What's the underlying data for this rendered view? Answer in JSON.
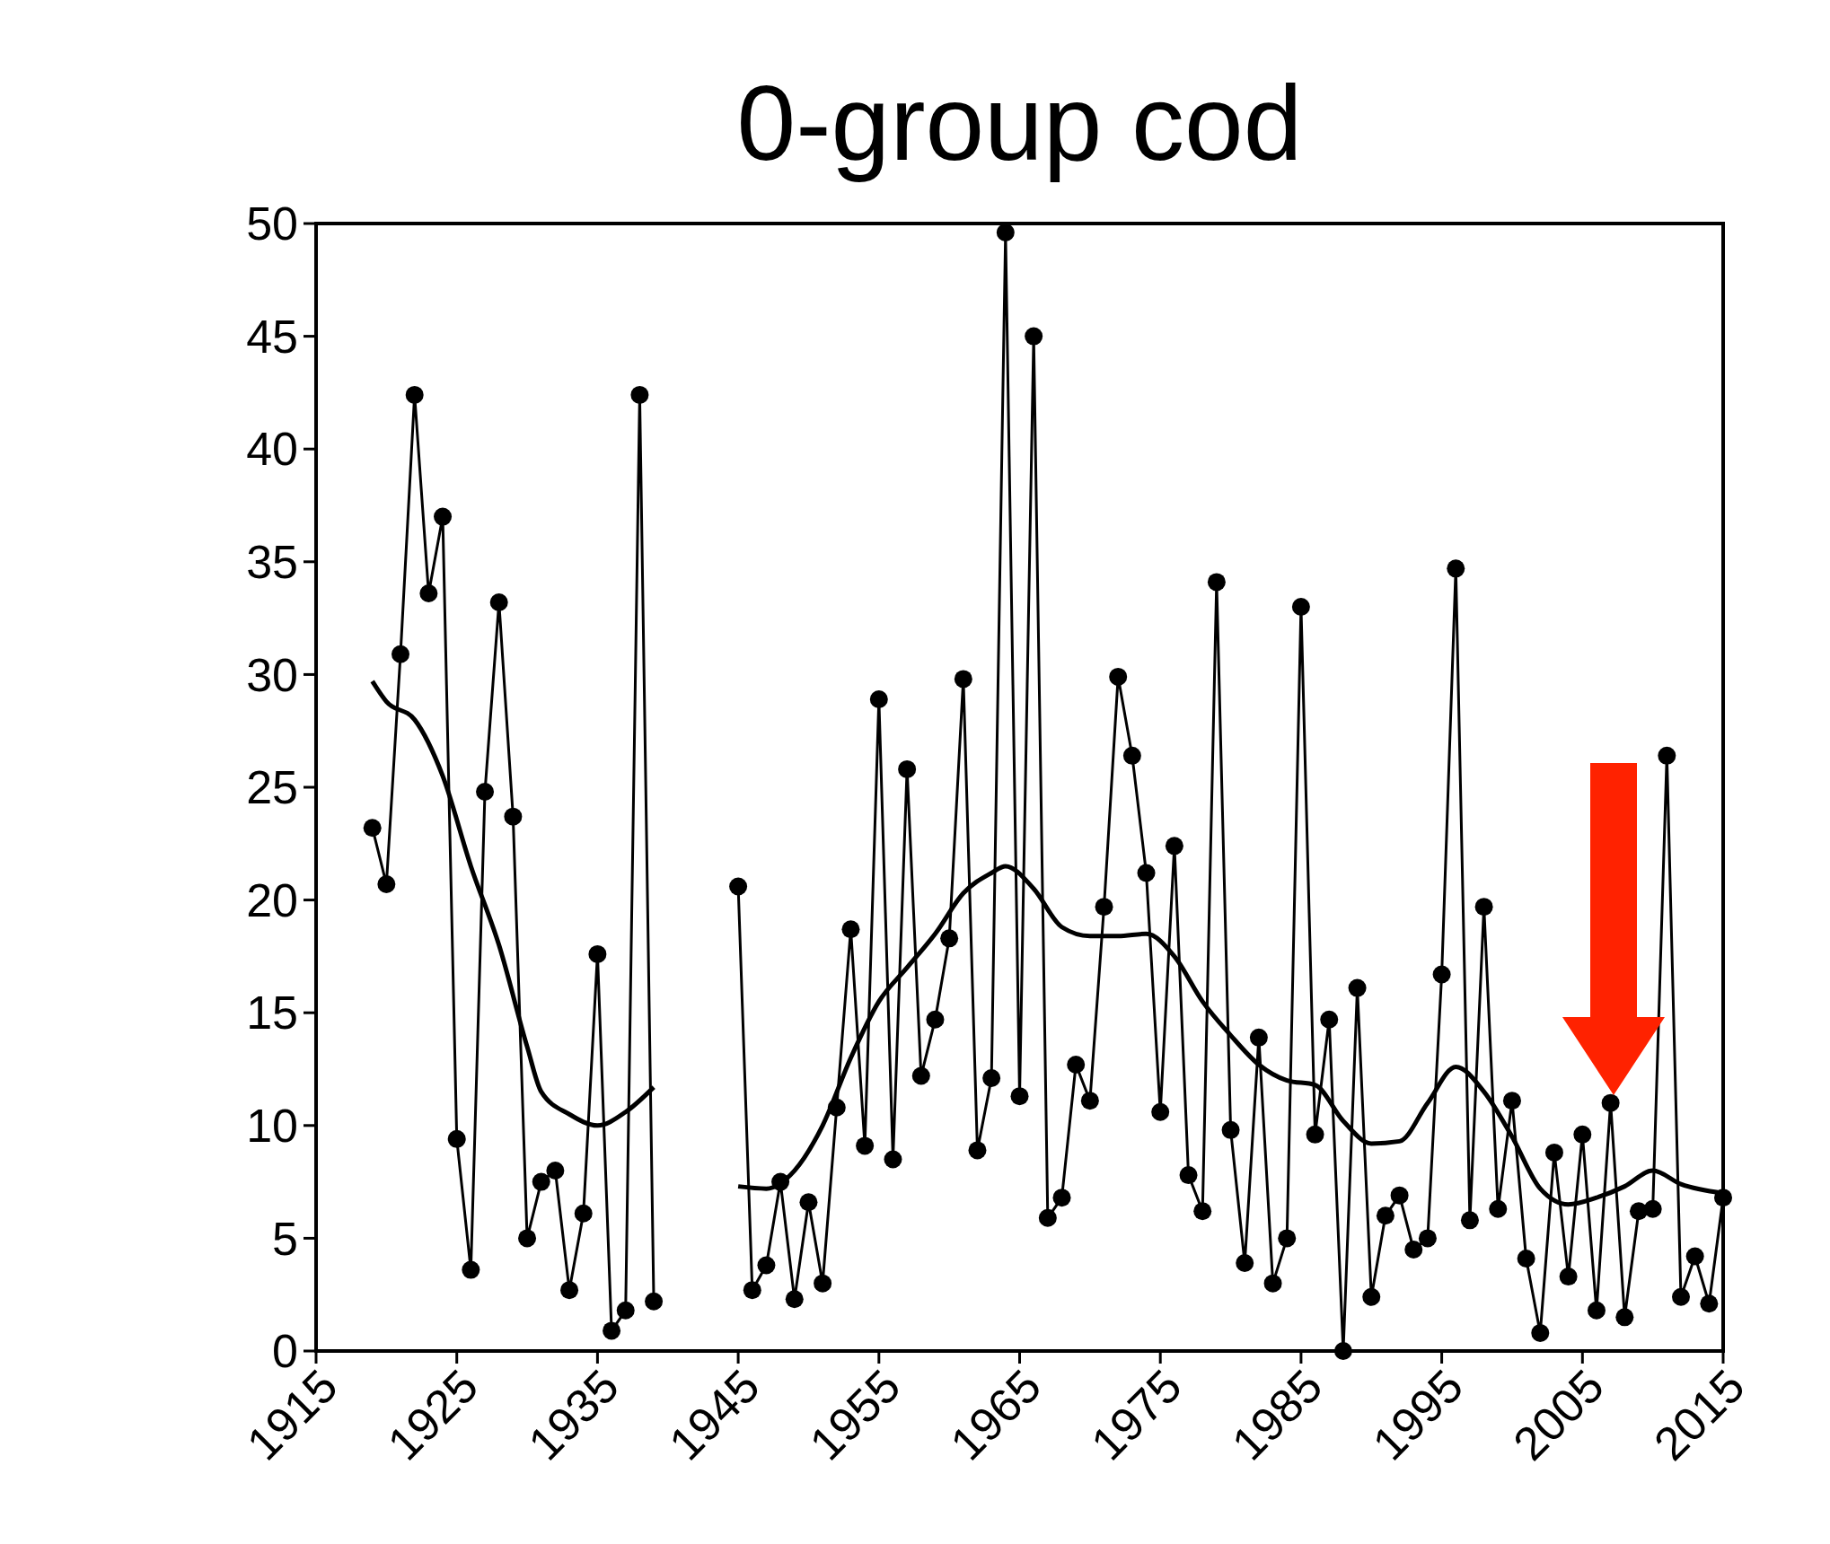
{
  "chart_data": {
    "type": "line",
    "title": "0-group cod",
    "x": [
      1919,
      1920,
      1921,
      1922,
      1923,
      1924,
      1925,
      1926,
      1927,
      1928,
      1929,
      1930,
      1931,
      1932,
      1933,
      1934,
      1935,
      1936,
      1937,
      1938,
      1939,
      1940,
      1945,
      1946,
      1947,
      1948,
      1949,
      1950,
      1951,
      1952,
      1953,
      1954,
      1955,
      1956,
      1957,
      1958,
      1959,
      1960,
      1961,
      1962,
      1963,
      1964,
      1965,
      1966,
      1967,
      1968,
      1969,
      1970,
      1971,
      1972,
      1973,
      1974,
      1975,
      1976,
      1977,
      1978,
      1979,
      1980,
      1981,
      1982,
      1983,
      1984,
      1985,
      1986,
      1987,
      1988,
      1989,
      1990,
      1991,
      1992,
      1993,
      1994,
      1995,
      1996,
      1997,
      1998,
      1999,
      2000,
      2001,
      2002,
      2003,
      2004,
      2005,
      2006,
      2007,
      2008,
      2009,
      2010,
      2011,
      2012,
      2013,
      2014,
      2015
    ],
    "series": [
      {
        "color": "#000000",
        "marker": "circle",
        "values": [
          23.2,
          20.7,
          30.9,
          42.4,
          33.6,
          37.0,
          9.4,
          3.6,
          24.8,
          33.2,
          23.7,
          5.0,
          7.5,
          8.0,
          2.7,
          6.1,
          17.6,
          0.9,
          1.8,
          42.4,
          2.2,
          null,
          20.6,
          2.7,
          3.8,
          7.5,
          2.3,
          6.6,
          3.0,
          10.8,
          18.7,
          9.1,
          28.9,
          8.5,
          25.8,
          12.2,
          14.7,
          18.3,
          29.8,
          8.9,
          12.1,
          49.6,
          11.3,
          45.0,
          5.9,
          6.8,
          12.7,
          11.1,
          19.7,
          29.9,
          26.4,
          21.2,
          10.6,
          22.4,
          7.8,
          6.2,
          34.1,
          9.8,
          3.9,
          13.9,
          3.0,
          5.0,
          33.0,
          9.6,
          14.7,
          0,
          16.1,
          2.4,
          6.0,
          6.9,
          4.5,
          5.0,
          16.7,
          34.7,
          5.8,
          19.7,
          6.3,
          11.1,
          4.1,
          0.8,
          8.8,
          3.3,
          9.6,
          1.8,
          11,
          1.5,
          6.2,
          6.3,
          26.4,
          2.4,
          4.2,
          2.1,
          6.8
        ]
      },
      {
        "color": "#000000",
        "marker": "none",
        "x": [
          1919,
          1920,
          1922,
          1924,
          1926,
          1928,
          1930,
          1931,
          1933,
          1935,
          1937,
          1939,
          1942,
          1945,
          1947,
          1949,
          1951,
          1953,
          1955,
          1957,
          1959,
          1961,
          1963,
          1964,
          1966,
          1968,
          1970,
          1972,
          1974,
          1976,
          1978,
          1980,
          1982,
          1984,
          1986,
          1988,
          1990,
          1992,
          1994,
          1996,
          1998,
          2000,
          2002,
          2004,
          2006,
          2008,
          2010,
          2012,
          2015
        ],
        "values": [
          29.7,
          28.8,
          28.0,
          25.5,
          21.5,
          18.0,
          13.5,
          11.5,
          10.5,
          10.0,
          10.6,
          11.7,
          null,
          7.3,
          7.2,
          8.0,
          10.0,
          13.0,
          15.5,
          17.0,
          18.5,
          20.3,
          21.2,
          21.5,
          20.5,
          18.8,
          18.4,
          18.4,
          18.5,
          17.5,
          15.5,
          14.0,
          12.7,
          12.0,
          11.8,
          10.2,
          9.2,
          9.3,
          11.0,
          12.6,
          11.5,
          9.5,
          7.2,
          6.5,
          6.8,
          7.3,
          8.0,
          7.4,
          7.0
        ]
      }
    ],
    "xlim": [
      1915,
      2015
    ],
    "xticks": [
      1915,
      1925,
      1935,
      1945,
      1955,
      1965,
      1975,
      1985,
      1995,
      2005,
      2015
    ],
    "ylim": [
      0,
      50
    ],
    "yticks": [
      0,
      5,
      10,
      15,
      20,
      25,
      30,
      35,
      40,
      45,
      50
    ],
    "grid": false
  }
}
